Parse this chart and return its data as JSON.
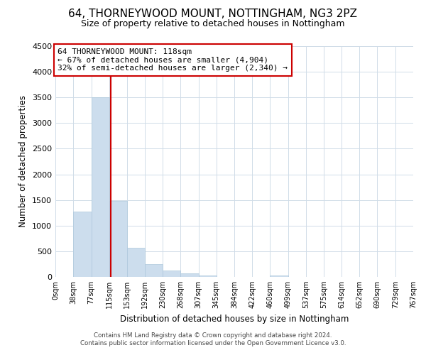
{
  "title": "64, THORNEYWOOD MOUNT, NOTTINGHAM, NG3 2PZ",
  "subtitle": "Size of property relative to detached houses in Nottingham",
  "xlabel": "Distribution of detached houses by size in Nottingham",
  "ylabel": "Number of detached properties",
  "bar_edges": [
    0,
    38,
    77,
    115,
    153,
    192,
    230,
    268,
    307,
    345,
    384,
    422,
    460,
    499,
    537,
    575,
    614,
    652,
    690,
    729,
    767
  ],
  "bar_heights": [
    0,
    1280,
    3500,
    1480,
    570,
    245,
    130,
    75,
    30,
    0,
    0,
    0,
    25,
    0,
    0,
    0,
    0,
    0,
    0,
    0
  ],
  "bar_color": "#ccdded",
  "bar_edge_color": "#aec8dc",
  "vline_x": 118,
  "vline_color": "#cc0000",
  "ylim": [
    0,
    4500
  ],
  "xlim": [
    0,
    767
  ],
  "tick_labels": [
    "0sqm",
    "38sqm",
    "77sqm",
    "115sqm",
    "153sqm",
    "192sqm",
    "230sqm",
    "268sqm",
    "307sqm",
    "345sqm",
    "384sqm",
    "422sqm",
    "460sqm",
    "499sqm",
    "537sqm",
    "575sqm",
    "614sqm",
    "652sqm",
    "690sqm",
    "729sqm",
    "767sqm"
  ],
  "annotation_title": "64 THORNEYWOOD MOUNT: 118sqm",
  "annotation_line1": "← 67% of detached houses are smaller (4,904)",
  "annotation_line2": "32% of semi-detached houses are larger (2,340) →",
  "footer_line1": "Contains HM Land Registry data © Crown copyright and database right 2024.",
  "footer_line2": "Contains public sector information licensed under the Open Government Licence v3.0.",
  "yticks": [
    0,
    500,
    1000,
    1500,
    2000,
    2500,
    3000,
    3500,
    4000,
    4500
  ],
  "background_color": "#ffffff",
  "grid_color": "#d0dce8"
}
